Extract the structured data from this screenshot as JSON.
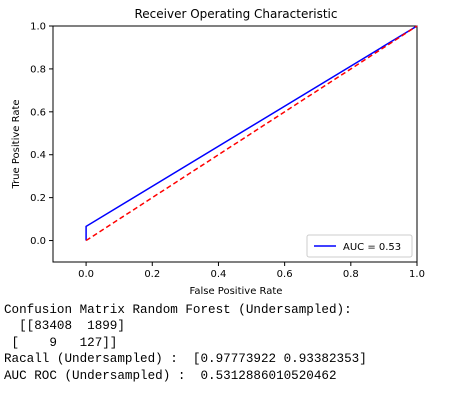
{
  "chart_data": {
    "type": "line",
    "title": "Receiver Operating Characteristic",
    "xlabel": "False Positive Rate",
    "ylabel": "True Positive Rate",
    "xlim": [
      -0.1,
      1.0
    ],
    "ylim": [
      -0.1,
      1.0
    ],
    "xticks": [
      "0.0",
      "0.2",
      "0.4",
      "0.6",
      "0.8",
      "1.0"
    ],
    "yticks": [
      "0.0",
      "0.2",
      "0.4",
      "0.6",
      "0.8",
      "1.0"
    ],
    "grid": false,
    "legend_position": "lower-right",
    "series": [
      {
        "name": "AUC = 0.53",
        "color": "#0000ff",
        "style": "solid",
        "x": [
          0.0,
          0.0,
          0.0,
          1.0
        ],
        "y": [
          0.0,
          0.0,
          0.066,
          1.0
        ]
      },
      {
        "color": "#ff0000",
        "style": "dashed",
        "x": [
          0.0,
          1.0
        ],
        "y": [
          0.0,
          1.0
        ]
      }
    ]
  },
  "output_lines": [
    "Confusion Matrix Random Forest (Undersampled):",
    "  [[83408  1899]",
    " [    9   127]]",
    "Racall (Undersampled) :  [0.97773922 0.93382353]",
    "AUC ROC (Undersampled) :  0.5312886010520462"
  ]
}
